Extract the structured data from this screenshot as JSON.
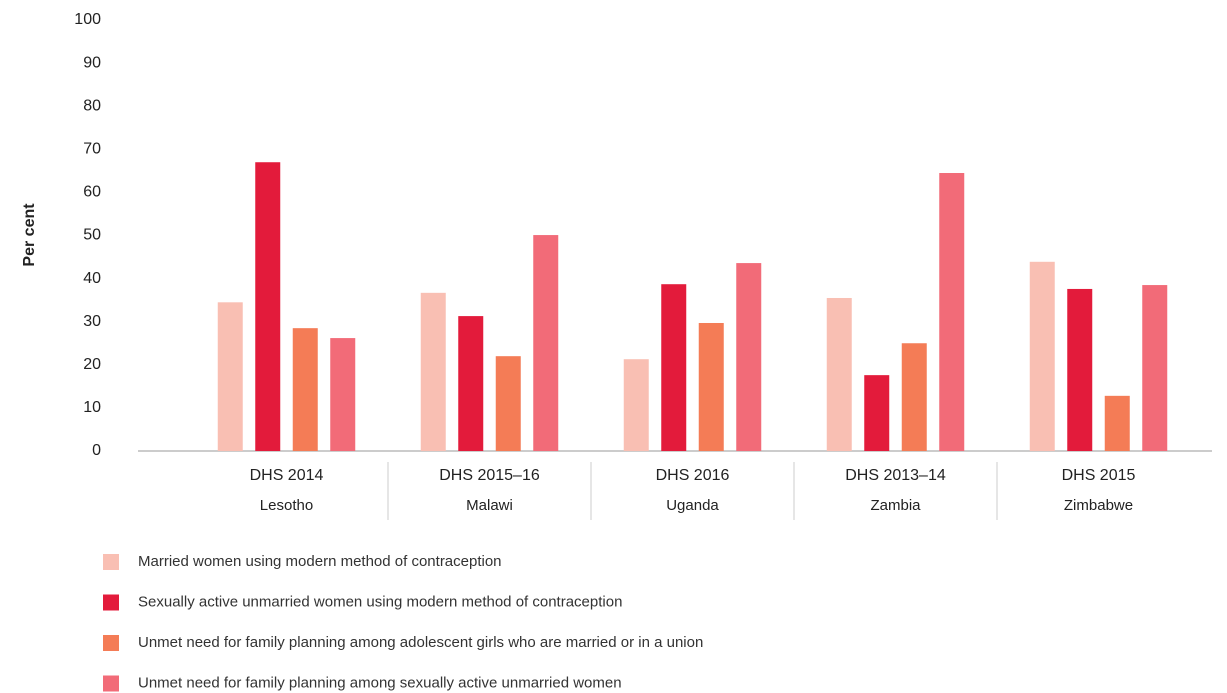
{
  "chart_data": {
    "type": "bar",
    "y_label": "Per cent",
    "categories": [
      "Lesotho",
      "Malawi",
      "Uganda",
      "Zambia",
      "Zimbabwe"
    ],
    "surveys": [
      "DHS 2014",
      "DHS 2015–16",
      "DHS 2016",
      "DHS 2013–14",
      "DHS 2015"
    ],
    "series": [
      {
        "name": "Married women using modern method of contraception",
        "color": "#f9bfb3",
        "values": [
          34.5,
          36.7,
          21.3,
          35.5,
          43.9
        ]
      },
      {
        "name": "Sexually active unmarried women using modern method of contraception",
        "color": "#e31b3b",
        "values": [
          67,
          31.3,
          38.7,
          17.6,
          37.6
        ]
      },
      {
        "name": "Unmet need for family planning among adolescent girls who are married or in a union",
        "color": "#f47c56",
        "values": [
          28.5,
          22,
          29.7,
          25,
          12.8
        ]
      },
      {
        "name": "Unmet need for family planning among sexually active unmarried women",
        "color": "#f26b78",
        "values": [
          26.2,
          50.1,
          43.6,
          64.5,
          38.5
        ]
      }
    ],
    "ylim": [
      0,
      100
    ],
    "yticks": [
      0,
      10,
      20,
      30,
      40,
      50,
      60,
      70,
      80,
      90,
      100
    ],
    "grid": false
  }
}
